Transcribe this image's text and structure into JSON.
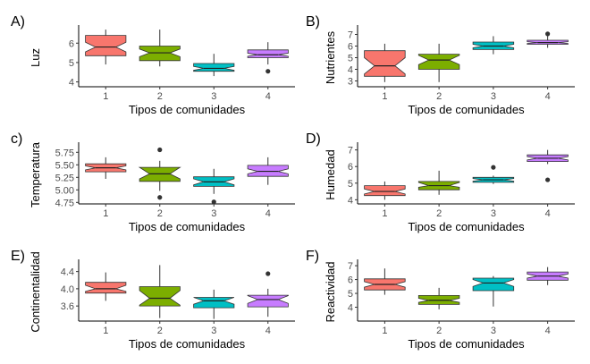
{
  "chart_data": [
    {
      "type": "boxplot",
      "panel": "A)",
      "xlabel": "Tipos de comunidades",
      "ylabel": "Luz",
      "categories": [
        "1",
        "2",
        "3",
        "4"
      ],
      "ylim": [
        3.75,
        6.75
      ],
      "yticks": [
        4,
        5,
        6
      ],
      "ytick_labels": [
        "4",
        "5",
        "6"
      ],
      "colors": [
        "#F8766D",
        "#7CAE00",
        "#00BFC4",
        "#C77CFF"
      ],
      "boxes": [
        {
          "q1": 5.35,
          "median": 5.8,
          "q3": 6.4,
          "whisker_low": 4.9,
          "whisker_high": 6.7,
          "notch_low": 5.55,
          "notch_high": 6.05,
          "outliers": []
        },
        {
          "q1": 5.1,
          "median": 5.5,
          "q3": 5.85,
          "whisker_low": 4.8,
          "whisker_high": 6.7,
          "notch_low": 5.3,
          "notch_high": 5.7,
          "outliers": []
        },
        {
          "q1": 4.55,
          "median": 4.7,
          "q3": 4.95,
          "whisker_low": 4.3,
          "whisker_high": 5.45,
          "notch_low": 4.6,
          "notch_high": 4.8,
          "outliers": []
        },
        {
          "q1": 5.25,
          "median": 5.4,
          "q3": 5.65,
          "whisker_low": 4.9,
          "whisker_high": 6.05,
          "notch_low": 5.32,
          "notch_high": 5.48,
          "outliers": [
            4.55
          ]
        }
      ]
    },
    {
      "type": "boxplot",
      "panel": "B)",
      "xlabel": "Tipos de comunidades",
      "ylabel": "Nutrientes",
      "categories": [
        "1",
        "2",
        "3",
        "4"
      ],
      "ylim": [
        2.5,
        7.5
      ],
      "yticks": [
        3,
        4,
        5,
        6,
        7
      ],
      "ytick_labels": [
        "3",
        "4",
        "5",
        "6",
        "7"
      ],
      "colors": [
        "#F8766D",
        "#7CAE00",
        "#00BFC4",
        "#C77CFF"
      ],
      "boxes": [
        {
          "q1": 3.4,
          "median": 4.3,
          "q3": 5.6,
          "whisker_low": 2.9,
          "whisker_high": 6.2,
          "notch_low": 3.6,
          "notch_high": 5.0,
          "outliers": []
        },
        {
          "q1": 4.0,
          "median": 4.8,
          "q3": 5.3,
          "whisker_low": 2.9,
          "whisker_high": 6.2,
          "notch_low": 4.4,
          "notch_high": 5.2,
          "outliers": []
        },
        {
          "q1": 5.7,
          "median": 6.0,
          "q3": 6.35,
          "whisker_low": 5.3,
          "whisker_high": 6.85,
          "notch_low": 5.85,
          "notch_high": 6.15,
          "outliers": []
        },
        {
          "q1": 6.15,
          "median": 6.3,
          "q3": 6.5,
          "whisker_low": 5.85,
          "whisker_high": 6.85,
          "notch_low": 6.22,
          "notch_high": 6.38,
          "outliers": [
            7.05
          ]
        }
      ]
    },
    {
      "type": "boxplot",
      "panel": "c)",
      "xlabel": "Tipos de comunidades",
      "ylabel": "Temperatura",
      "categories": [
        "1",
        "2",
        "3",
        "4"
      ],
      "ylim": [
        4.72,
        5.88
      ],
      "yticks": [
        4.75,
        5.0,
        5.25,
        5.5,
        5.75
      ],
      "ytick_labels": [
        "4.75",
        "5.00",
        "5.25",
        "5.50",
        "5.75"
      ],
      "colors": [
        "#F8766D",
        "#7CAE00",
        "#00BFC4",
        "#C77CFF"
      ],
      "boxes": [
        {
          "q1": 5.36,
          "median": 5.44,
          "q3": 5.52,
          "whisker_low": 5.22,
          "whisker_high": 5.65,
          "notch_low": 5.4,
          "notch_high": 5.48,
          "outliers": []
        },
        {
          "q1": 5.17,
          "median": 5.32,
          "q3": 5.45,
          "whisker_low": 4.98,
          "whisker_high": 5.58,
          "notch_low": 5.22,
          "notch_high": 5.45,
          "outliers": [
            5.8,
            4.85
          ]
        },
        {
          "q1": 5.07,
          "median": 5.16,
          "q3": 5.26,
          "whisker_low": 4.92,
          "whisker_high": 5.42,
          "notch_low": 5.1,
          "notch_high": 5.22,
          "outliers": [
            4.76
          ]
        },
        {
          "q1": 5.27,
          "median": 5.37,
          "q3": 5.49,
          "whisker_low": 5.1,
          "whisker_high": 5.65,
          "notch_low": 5.32,
          "notch_high": 5.42,
          "outliers": []
        }
      ]
    },
    {
      "type": "boxplot",
      "panel": "D)",
      "xlabel": "Tipos de comunidades",
      "ylabel": "Humedad",
      "categories": [
        "1",
        "2",
        "3",
        "4"
      ],
      "ylim": [
        3.75,
        7.25
      ],
      "yticks": [
        4,
        5,
        6,
        7
      ],
      "ytick_labels": [
        "4",
        "5",
        "6",
        "7"
      ],
      "colors": [
        "#F8766D",
        "#7CAE00",
        "#00BFC4",
        "#C77CFF"
      ],
      "boxes": [
        {
          "q1": 4.25,
          "median": 4.5,
          "q3": 4.85,
          "whisker_low": 4.0,
          "whisker_high": 5.1,
          "notch_low": 4.35,
          "notch_high": 4.65,
          "outliers": []
        },
        {
          "q1": 4.6,
          "median": 4.85,
          "q3": 5.1,
          "whisker_low": 4.3,
          "whisker_high": 5.75,
          "notch_low": 4.75,
          "notch_high": 5.05,
          "outliers": []
        },
        {
          "q1": 5.05,
          "median": 5.2,
          "q3": 5.35,
          "whisker_low": 4.95,
          "whisker_high": 5.45,
          "notch_low": 5.12,
          "notch_high": 5.28,
          "outliers": [
            5.95
          ]
        },
        {
          "q1": 6.3,
          "median": 6.5,
          "q3": 6.7,
          "whisker_low": 6.15,
          "whisker_high": 7.0,
          "notch_low": 6.4,
          "notch_high": 6.6,
          "outliers": [
            5.2
          ]
        }
      ]
    },
    {
      "type": "boxplot",
      "panel": "E)",
      "xlabel": "Tipos de comunidades",
      "ylabel": "Continentalidad",
      "categories": [
        "1",
        "2",
        "3",
        "4"
      ],
      "ylim": [
        3.25,
        4.6
      ],
      "yticks": [
        3.6,
        4.0,
        4.4
      ],
      "ytick_labels": [
        "3.6",
        "4.0",
        "4.4"
      ],
      "colors": [
        "#F8766D",
        "#7CAE00",
        "#00BFC4",
        "#C77CFF"
      ],
      "boxes": [
        {
          "q1": 3.9,
          "median": 4.0,
          "q3": 4.15,
          "whisker_low": 3.72,
          "whisker_high": 4.38,
          "notch_low": 3.94,
          "notch_high": 4.08,
          "outliers": []
        },
        {
          "q1": 3.6,
          "median": 3.78,
          "q3": 4.05,
          "whisker_low": 3.32,
          "whisker_high": 4.55,
          "notch_low": 3.62,
          "notch_high": 3.96,
          "outliers": []
        },
        {
          "q1": 3.56,
          "median": 3.72,
          "q3": 3.8,
          "whisker_low": 3.3,
          "whisker_high": 3.98,
          "notch_low": 3.64,
          "notch_high": 3.8,
          "outliers": []
        },
        {
          "q1": 3.58,
          "median": 3.75,
          "q3": 3.85,
          "whisker_low": 3.35,
          "whisker_high": 4.0,
          "notch_low": 3.66,
          "notch_high": 3.84,
          "outliers": [
            4.35
          ]
        }
      ]
    },
    {
      "type": "boxplot",
      "panel": "F)",
      "xlabel": "Tipos de comunidades",
      "ylabel": "Reactividad",
      "categories": [
        "1",
        "2",
        "3",
        "4"
      ],
      "ylim": [
        3.0,
        7.2
      ],
      "yticks": [
        4,
        5,
        6,
        7
      ],
      "ytick_labels": [
        "4",
        "5",
        "6",
        "7"
      ],
      "colors": [
        "#F8766D",
        "#7CAE00",
        "#00BFC4",
        "#C77CFF"
      ],
      "boxes": [
        {
          "q1": 5.25,
          "median": 5.65,
          "q3": 6.05,
          "whisker_low": 4.9,
          "whisker_high": 6.8,
          "notch_low": 5.45,
          "notch_high": 5.85,
          "outliers": []
        },
        {
          "q1": 4.2,
          "median": 4.5,
          "q3": 4.85,
          "whisker_low": 3.85,
          "whisker_high": 5.4,
          "notch_low": 4.35,
          "notch_high": 4.65,
          "outliers": []
        },
        {
          "q1": 5.2,
          "median": 5.75,
          "q3": 6.1,
          "whisker_low": 4.05,
          "whisker_high": 6.25,
          "notch_low": 5.5,
          "notch_high": 6.0,
          "outliers": []
        },
        {
          "q1": 5.95,
          "median": 6.25,
          "q3": 6.55,
          "whisker_low": 5.6,
          "whisker_high": 6.9,
          "notch_low": 6.1,
          "notch_high": 6.4,
          "outliers": []
        }
      ]
    }
  ]
}
